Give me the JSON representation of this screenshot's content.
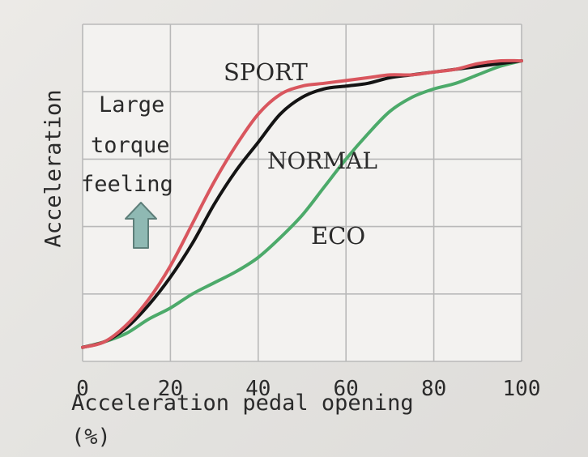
{
  "chart_data": {
    "type": "line",
    "xlabel": "Acceleration pedal opening",
    "xlabel_unit": "(%)",
    "ylabel": "Acceleration",
    "xlim": [
      0,
      100
    ],
    "x_ticks": [
      "0",
      "20",
      "40",
      "60",
      "80",
      "100"
    ],
    "y_ticks": [],
    "grid": true,
    "annotation": {
      "lines": [
        "Large",
        "torque",
        "feeling"
      ],
      "arrow": "up-arrow-icon",
      "arrow_color": "#8fb9b3"
    },
    "series": [
      {
        "name": "SPORT",
        "color": "#d9565e",
        "x": [
          0,
          5,
          10,
          15,
          20,
          25,
          30,
          35,
          40,
          45,
          50,
          55,
          60,
          65,
          70,
          75,
          80,
          85,
          90,
          95,
          100
        ],
        "y": [
          0.05,
          0.07,
          0.13,
          0.22,
          0.34,
          0.49,
          0.64,
          0.77,
          0.88,
          0.95,
          0.98,
          0.99,
          1.0,
          1.01,
          1.02,
          1.02,
          1.03,
          1.04,
          1.06,
          1.07,
          1.07
        ]
      },
      {
        "name": "NORMAL",
        "color": "#141414",
        "x": [
          0,
          5,
          10,
          15,
          20,
          25,
          30,
          35,
          40,
          45,
          50,
          55,
          60,
          65,
          70,
          75,
          80,
          85,
          90,
          95,
          100
        ],
        "y": [
          0.05,
          0.07,
          0.12,
          0.2,
          0.3,
          0.42,
          0.56,
          0.68,
          0.78,
          0.88,
          0.94,
          0.97,
          0.98,
          0.99,
          1.01,
          1.02,
          1.03,
          1.04,
          1.05,
          1.06,
          1.07
        ]
      },
      {
        "name": "ECO",
        "color": "#4caa6a",
        "x": [
          0,
          5,
          10,
          15,
          20,
          25,
          30,
          35,
          40,
          45,
          50,
          55,
          60,
          65,
          70,
          75,
          80,
          85,
          90,
          95,
          100
        ],
        "y": [
          0.05,
          0.07,
          0.1,
          0.15,
          0.19,
          0.24,
          0.28,
          0.32,
          0.37,
          0.44,
          0.52,
          0.62,
          0.72,
          0.81,
          0.89,
          0.94,
          0.97,
          0.99,
          1.02,
          1.05,
          1.07
        ]
      }
    ]
  }
}
